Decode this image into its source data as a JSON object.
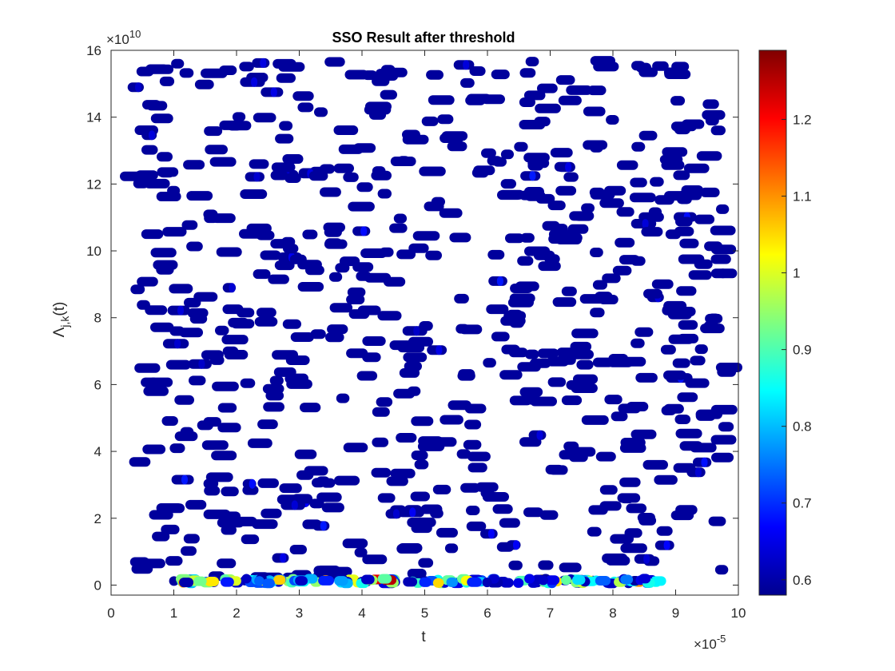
{
  "chart_data": {
    "type": "scatter",
    "title": "SSO Result after threshold",
    "xlabel": "t",
    "ylabel_main": "Λ",
    "ylabel_sub": "j,k",
    "ylabel_tail": "(t)",
    "x_multiplier_label": "×10",
    "x_multiplier_exp": "-5",
    "y_multiplier_label": "×10",
    "y_multiplier_exp": "10",
    "xlim": [
      0,
      10
    ],
    "ylim": [
      -0.3,
      16
    ],
    "x_ticks": [
      "0",
      "1",
      "2",
      "3",
      "4",
      "5",
      "6",
      "7",
      "8",
      "9",
      "10"
    ],
    "y_ticks": [
      "0",
      "2",
      "4",
      "6",
      "8",
      "10",
      "12",
      "14",
      "16"
    ],
    "colorbar": {
      "colormap": "jet",
      "range": [
        0.58,
        1.29
      ],
      "ticks": [
        "0.6",
        "0.7",
        "0.8",
        "0.9",
        "1",
        "1.1",
        "1.2"
      ]
    },
    "background_marker_value": 0.6,
    "x_range_scatter": [
      0.2,
      9.8
    ],
    "y_range_scatter": [
      0.2,
      15.7
    ],
    "background_cluster_count": 620,
    "baseline_band": {
      "y": 0.12,
      "x_range": [
        1.0,
        8.8
      ],
      "value_range": [
        0.6,
        1.29
      ]
    }
  }
}
